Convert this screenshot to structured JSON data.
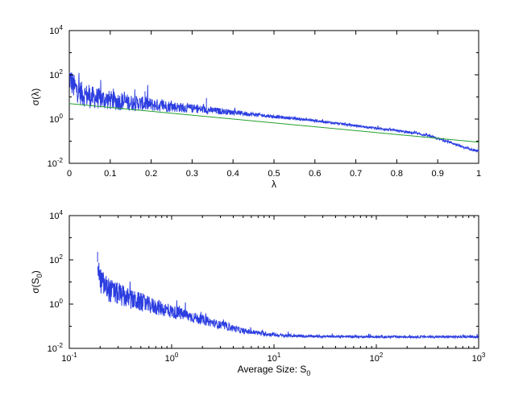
{
  "chart_data": [
    {
      "type": "line",
      "xlabel": "λ",
      "ylabel": "σ(λ)",
      "xscale": "linear",
      "yscale": "log",
      "xlim": [
        0,
        1
      ],
      "ylim": [
        0.01,
        10000
      ],
      "xticks": [
        "0",
        "0.1",
        "0.2",
        "0.3",
        "0.4",
        "0.5",
        "0.6",
        "0.7",
        "0.8",
        "0.9",
        "1"
      ],
      "yticks": [
        {
          "base": "10",
          "exp": "-2"
        },
        {
          "base": "10",
          "exp": "0"
        },
        {
          "base": "10",
          "exp": "2"
        },
        {
          "base": "10",
          "exp": "4"
        }
      ],
      "grid": false,
      "series": [
        {
          "color": "#2b3de0",
          "style": "noisy",
          "x": [
            0,
            0.005,
            0.01,
            0.02,
            0.03,
            0.05,
            0.1,
            0.15,
            0.2,
            0.3,
            0.4,
            0.5,
            0.6,
            0.7,
            0.8,
            0.85,
            0.88,
            0.9,
            0.93,
            0.96,
            1.0
          ],
          "y": [
            80,
            50,
            30,
            20,
            14,
            10,
            7,
            5.5,
            4.5,
            3,
            2,
            1.3,
            0.85,
            0.5,
            0.3,
            0.22,
            0.17,
            0.13,
            0.09,
            0.055,
            0.035
          ]
        },
        {
          "color": "#22a02a",
          "style": "smooth",
          "x": [
            0,
            1
          ],
          "y": [
            5.0,
            0.09
          ]
        }
      ],
      "spikes": [
        {
          "x": 0.048,
          "y": 35
        },
        {
          "x": 0.128,
          "y": 15
        },
        {
          "x": 0.185,
          "y": 18
        },
        {
          "x": 0.335,
          "y": 9
        }
      ]
    },
    {
      "type": "line",
      "xlabel": "Average Size: S",
      "xlabel_sub": "0",
      "ylabel": "σ(S",
      "ylabel_sub": "0",
      "ylabel_end": ")",
      "xscale": "log",
      "yscale": "log",
      "xlim": [
        0.1,
        1000
      ],
      "ylim": [
        0.01,
        10000
      ],
      "xticks": [
        {
          "base": "10",
          "exp": "-1"
        },
        {
          "base": "10",
          "exp": "0"
        },
        {
          "base": "10",
          "exp": "1"
        },
        {
          "base": "10",
          "exp": "2"
        },
        {
          "base": "10",
          "exp": "3"
        }
      ],
      "yticks": [
        {
          "base": "10",
          "exp": "-2"
        },
        {
          "base": "10",
          "exp": "0"
        },
        {
          "base": "10",
          "exp": "2"
        },
        {
          "base": "10",
          "exp": "4"
        }
      ],
      "grid": false,
      "series": [
        {
          "color": "#2b3de0",
          "style": "noisy",
          "x": [
            0.19,
            0.195,
            0.2,
            0.22,
            0.25,
            0.3,
            0.4,
            0.6,
            1.0,
            1.5,
            2,
            3,
            5,
            8,
            12,
            20,
            40,
            100,
            300,
            1000
          ],
          "y": [
            80,
            30,
            12,
            7,
            4,
            2.8,
            1.6,
            0.9,
            0.45,
            0.28,
            0.19,
            0.11,
            0.06,
            0.045,
            0.038,
            0.035,
            0.034,
            0.033,
            0.033,
            0.033
          ]
        }
      ],
      "spikes": [
        {
          "x": 0.189,
          "y": 230
        },
        {
          "x": 0.235,
          "y": 12
        },
        {
          "x": 0.285,
          "y": 6
        }
      ]
    }
  ]
}
